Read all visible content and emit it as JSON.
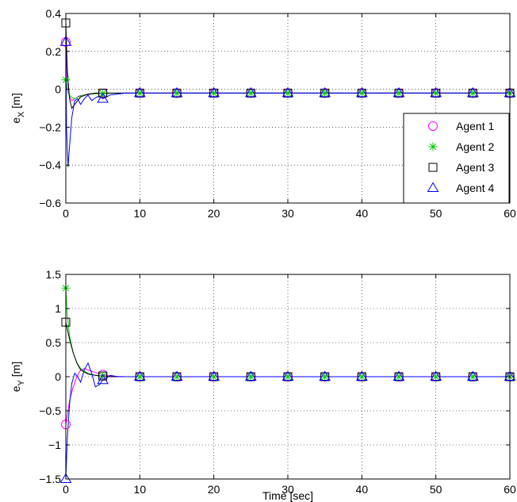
{
  "chart_data": [
    {
      "type": "line",
      "title": "",
      "xlabel": "",
      "ylabel_main": "e",
      "ylabel_sub": "X",
      "ylabel_unit": " [m]",
      "xlim": [
        0,
        60
      ],
      "ylim": [
        -0.6,
        0.4
      ],
      "xticks": [
        0,
        10,
        20,
        30,
        40,
        50,
        60
      ],
      "xtick_labels": [
        "0",
        "10",
        "20",
        "30",
        "40",
        "50",
        "60"
      ],
      "yticks": [
        -0.6,
        -0.4,
        -0.2,
        0,
        0.2,
        0.4
      ],
      "ytick_labels": [
        "−0.6",
        "−0.4",
        "−0.2",
        "0",
        "0.2",
        "0.4"
      ],
      "grid": true,
      "legend_position": "bottom-right",
      "markers_x": [
        0,
        5,
        10,
        15,
        20,
        25,
        30,
        35,
        40,
        45,
        50,
        55,
        60
      ],
      "series": [
        {
          "name": "Agent 1",
          "color": "#ff00ff",
          "marker": "circle",
          "x": [
            0,
            0.2,
            0.5,
            0.8,
            1.2,
            1.8,
            2.5,
            3.5,
            5,
            7,
            10,
            60
          ],
          "y": [
            0.25,
            0.05,
            -0.04,
            -0.06,
            -0.05,
            -0.035,
            -0.03,
            -0.025,
            -0.022,
            -0.02,
            -0.02,
            -0.02
          ]
        },
        {
          "name": "Agent 2",
          "color": "#00cc00",
          "marker": "star",
          "x": [
            0,
            0.3,
            0.7,
            1.2,
            2,
            3,
            5,
            8,
            60
          ],
          "y": [
            0.05,
            -0.02,
            -0.04,
            -0.05,
            -0.035,
            -0.025,
            -0.022,
            -0.02,
            -0.02
          ]
        },
        {
          "name": "Agent 3",
          "color": "#000000",
          "marker": "square",
          "x": [
            0,
            0.2,
            0.5,
            0.8,
            1.2,
            2,
            3,
            4,
            5,
            7,
            10,
            60
          ],
          "y": [
            0.35,
            0.1,
            -0.05,
            -0.1,
            -0.08,
            -0.04,
            -0.025,
            -0.02,
            -0.02,
            -0.02,
            -0.02,
            -0.02
          ]
        },
        {
          "name": "Agent 4",
          "color": "#0000ff",
          "marker": "triangle",
          "x": [
            0,
            0.1,
            0.3,
            0.5,
            0.8,
            1.2,
            1.6,
            2,
            2.5,
            3,
            3.5,
            4,
            4.5,
            5,
            5.5,
            6,
            7,
            8,
            10,
            60
          ],
          "y": [
            0.25,
            -0.2,
            -0.41,
            -0.3,
            -0.15,
            -0.06,
            -0.05,
            -0.08,
            -0.05,
            -0.03,
            -0.06,
            -0.045,
            -0.035,
            -0.05,
            -0.04,
            -0.03,
            -0.025,
            -0.02,
            -0.02,
            -0.02
          ]
        }
      ]
    },
    {
      "type": "line",
      "title": "",
      "xlabel": "Time [sec]",
      "ylabel_main": "e",
      "ylabel_sub": "Y",
      "ylabel_unit": " [m]",
      "xlim": [
        0,
        60
      ],
      "ylim": [
        -1.5,
        1.5
      ],
      "xticks": [
        0,
        10,
        20,
        30,
        40,
        50,
        60
      ],
      "xtick_labels": [
        "0",
        "10",
        "20",
        "30",
        "40",
        "50",
        "60"
      ],
      "yticks": [
        -1.5,
        -1,
        -0.5,
        0,
        0.5,
        1,
        1.5
      ],
      "ytick_labels": [
        "−1.5",
        "−1",
        "−0.5",
        "0",
        "0.5",
        "1",
        "1.5"
      ],
      "grid": true,
      "markers_x": [
        0,
        5,
        10,
        15,
        20,
        25,
        30,
        35,
        40,
        45,
        50,
        55,
        60
      ],
      "series": [
        {
          "name": "Agent 1",
          "color": "#ff00ff",
          "marker": "circle",
          "x": [
            0,
            0.5,
            1,
            1.5,
            2,
            2.5,
            3,
            3.5,
            4,
            5,
            6,
            8,
            10,
            60
          ],
          "y": [
            -0.7,
            -0.35,
            -0.15,
            0,
            0.1,
            0.12,
            0.1,
            0.08,
            0.06,
            0.03,
            0.01,
            0,
            0,
            0
          ]
        },
        {
          "name": "Agent 2",
          "color": "#00cc00",
          "marker": "star",
          "x": [
            0,
            0.2,
            0.5,
            1,
            1.5,
            2,
            2.5,
            3,
            4,
            5,
            6,
            8,
            60
          ],
          "y": [
            1.3,
            0.9,
            0.6,
            0.35,
            0.2,
            0.12,
            0.08,
            0.05,
            0.02,
            0.01,
            0,
            0,
            0
          ]
        },
        {
          "name": "Agent 3",
          "color": "#000000",
          "marker": "square",
          "x": [
            0,
            0.5,
            1,
            1.5,
            2,
            3,
            4,
            5,
            6,
            8,
            60
          ],
          "y": [
            0.8,
            0.55,
            0.35,
            0.2,
            0.1,
            0.04,
            0.02,
            0.01,
            0,
            0,
            0
          ]
        },
        {
          "name": "Agent 4",
          "color": "#0000ff",
          "marker": "triangle",
          "x": [
            0,
            0.2,
            0.5,
            0.8,
            1.2,
            1.6,
            2,
            2.5,
            3,
            3.5,
            4,
            4.5,
            5,
            5.5,
            6,
            7,
            8,
            10,
            60
          ],
          "y": [
            -1.5,
            -0.9,
            -0.4,
            -0.1,
            0.05,
            0.0,
            -0.08,
            0.1,
            0.2,
            0.05,
            -0.15,
            -0.12,
            -0.05,
            -0.02,
            0.02,
            0.0,
            0.0,
            0,
            0
          ]
        }
      ]
    }
  ]
}
